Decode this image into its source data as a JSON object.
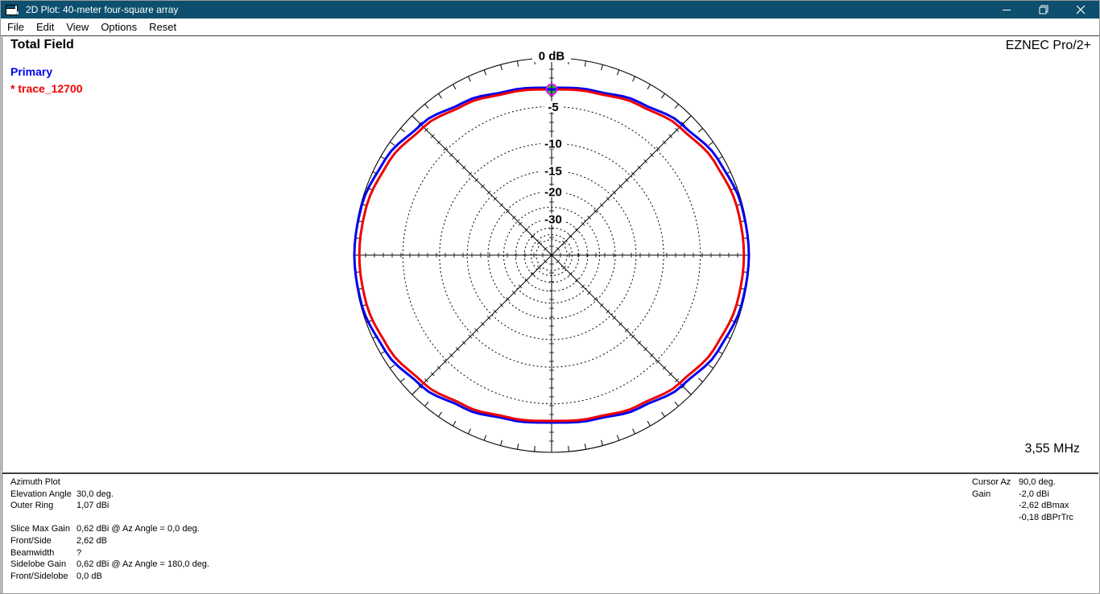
{
  "window": {
    "title": "2D Plot: 40-meter four-square array",
    "controls": {
      "minimize": "minimize",
      "restore": "restore",
      "close": "close"
    }
  },
  "menu": {
    "items": [
      "File",
      "Edit",
      "View",
      "Options",
      "Reset"
    ]
  },
  "header": {
    "field_type": "Total Field",
    "app_name": "EZNEC Pro/2+",
    "primary_label": "Primary",
    "trace_label": "* trace_12700",
    "frequency": "3,55 MHz"
  },
  "colors": {
    "titlebar": "#0d4f6e",
    "primary_trace": "#0000ee",
    "secondary_trace": "#ee0000",
    "marker_fill": "#2eb82e",
    "marker_stroke": "#ff00ff",
    "grid": "#000000"
  },
  "chart_data": {
    "type": "polar",
    "title": "Total Field azimuth pattern",
    "outer_ring_dbi": 1.07,
    "scale_note": "ARRL-style log scale, radius ratio ~0.945 per dB",
    "scale_base_per_db": 0.945,
    "ring_labels": [
      {
        "db": 0,
        "label": "0 dB"
      },
      {
        "db": -5,
        "label": "-5"
      },
      {
        "db": -10,
        "label": "-10"
      },
      {
        "db": -15,
        "label": "-15"
      },
      {
        "db": -20,
        "label": "-20"
      },
      {
        "db": -30,
        "label": "-30"
      }
    ],
    "rings_db": [
      -5,
      -10,
      -15,
      -20,
      -25,
      -30,
      -35,
      -40,
      -45
    ],
    "ring_tick_step_deg": 5,
    "radial_step_deg": 45,
    "azimuth_step_deg": 15,
    "series": [
      {
        "name": "Primary",
        "color_key": "primary_trace",
        "gains_dbi": [
          1.07,
          0.98,
          0.59,
          -0.1,
          -0.92,
          -1.57,
          -1.82,
          -1.57,
          -0.92,
          -0.1,
          0.59,
          0.98,
          1.07,
          0.98,
          0.59,
          -0.1,
          -0.92,
          -1.57,
          -1.82,
          -1.57,
          -0.92,
          -0.1,
          0.59,
          0.98
        ]
      },
      {
        "name": "trace_12700",
        "color_key": "secondary_trace",
        "gains_dbi": [
          0.62,
          0.54,
          0.19,
          -0.44,
          -1.18,
          -1.77,
          -2.0,
          -1.77,
          -1.18,
          -0.44,
          0.19,
          0.54,
          0.62,
          0.54,
          0.19,
          -0.44,
          -1.18,
          -1.77,
          -2.0,
          -1.77,
          -1.18,
          -0.44,
          0.19,
          0.54
        ]
      }
    ],
    "cursor": {
      "az_deg": 90.0,
      "gain_dbi": -2.0,
      "rel_max_db": -2.62,
      "rel_primary_db": -0.18
    }
  },
  "info_panel": {
    "rows": [
      {
        "label": "Azimuth Plot",
        "value": ""
      },
      {
        "label": "Elevation Angle",
        "value": "30,0 deg."
      },
      {
        "label": "Outer Ring",
        "value": "1,07 dBi"
      },
      {
        "label": "",
        "value": ""
      },
      {
        "label": "Slice Max Gain",
        "value": "0,62 dBi @ Az Angle = 0,0 deg."
      },
      {
        "label": "Front/Side",
        "value": "2,62 dB"
      },
      {
        "label": "Beamwidth",
        "value": "?"
      },
      {
        "label": "Sidelobe Gain",
        "value": "0,62 dBi @ Az Angle = 180,0 deg."
      },
      {
        "label": "Front/Sidelobe",
        "value": "0,0 dB"
      }
    ]
  },
  "cursor_panel": {
    "rows": [
      {
        "label": "Cursor Az",
        "value": "90,0 deg."
      },
      {
        "label": "Gain",
        "value": "-2,0 dBi"
      },
      {
        "label": "",
        "value": "-2,62 dBmax"
      },
      {
        "label": "",
        "value": "-0,18 dBPrTrc"
      }
    ]
  }
}
